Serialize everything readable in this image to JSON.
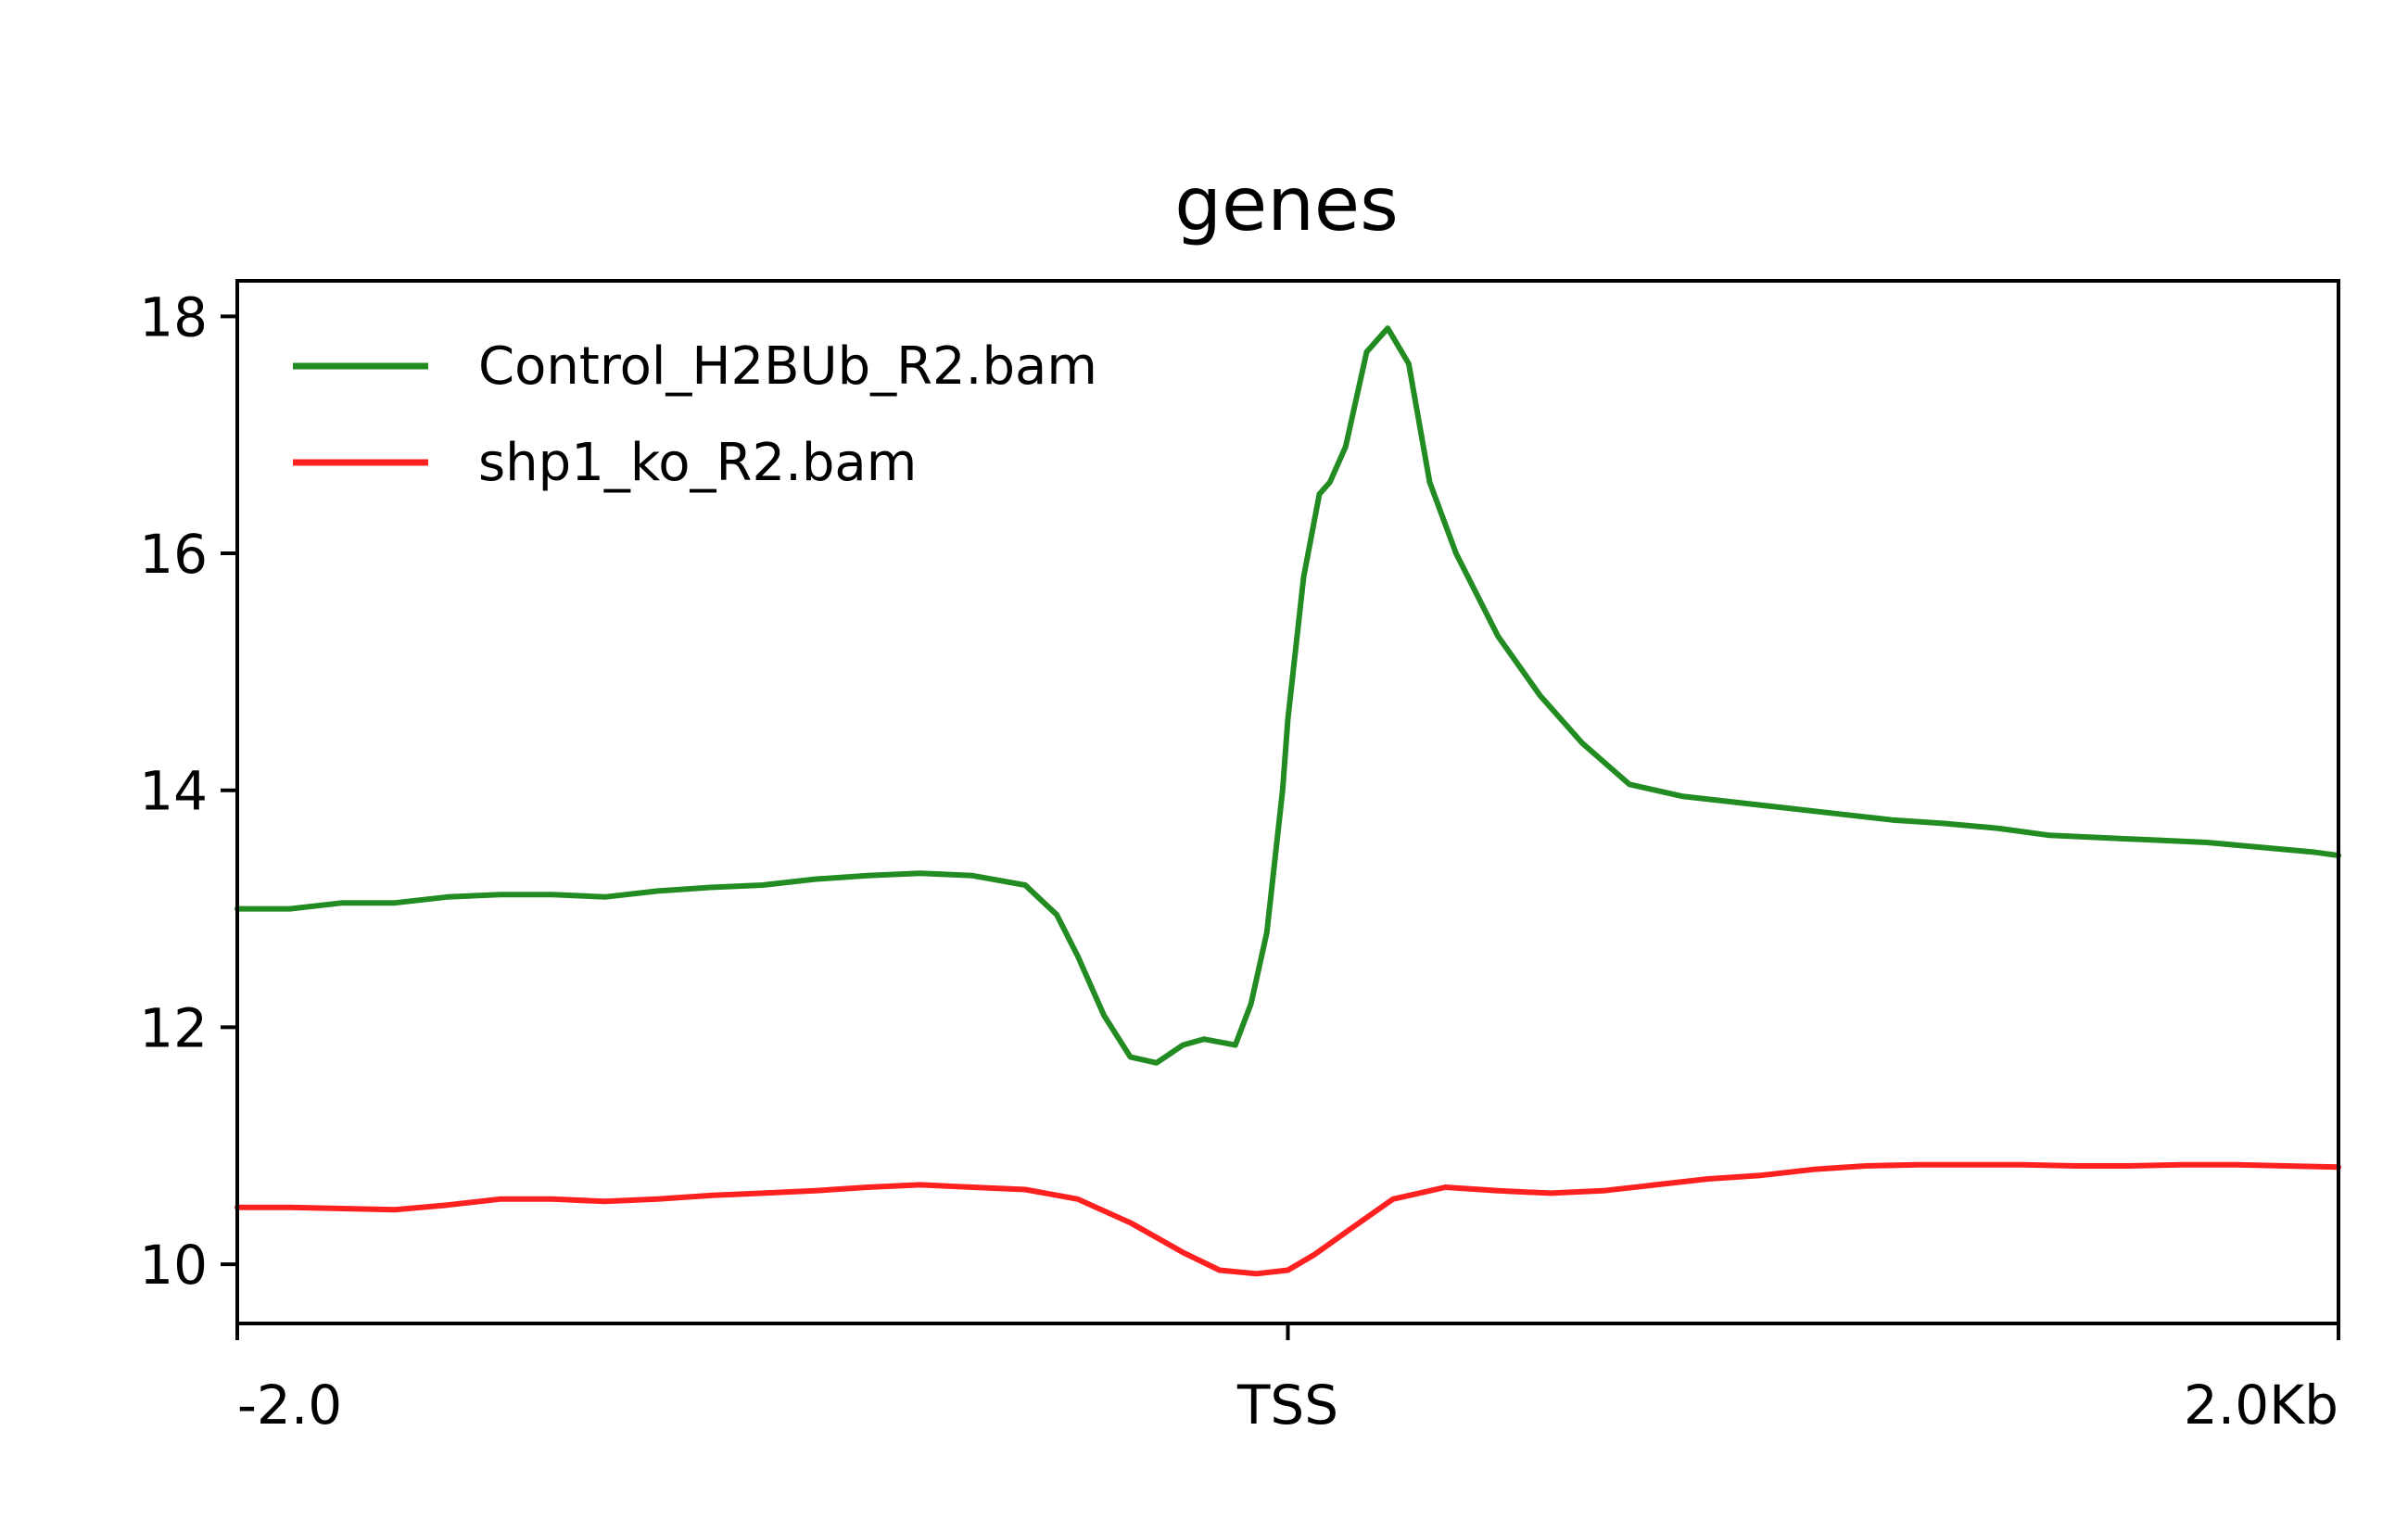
{
  "chart_data": {
    "type": "line",
    "title": "genes",
    "xlabel": "",
    "ylabel": "",
    "xlim": [
      -2000,
      2000
    ],
    "ylim": [
      9.5,
      18.3
    ],
    "grid": false,
    "legend_position": "top-left",
    "x_ticks": [
      {
        "value": -2000,
        "label": "-2.0"
      },
      {
        "value": 0,
        "label": "TSS"
      },
      {
        "value": 2000,
        "label": "2.0Kb"
      }
    ],
    "y_ticks": [
      {
        "value": 10,
        "label": "10"
      },
      {
        "value": 12,
        "label": "12"
      },
      {
        "value": 14,
        "label": "14"
      },
      {
        "value": 16,
        "label": "16"
      },
      {
        "value": 18,
        "label": "18"
      }
    ],
    "series": [
      {
        "name": "Control_H2BUb_R2.bam",
        "color": "#228b22",
        "points": [
          [
            -2000,
            13.0
          ],
          [
            -1900,
            13.0
          ],
          [
            -1800,
            13.05
          ],
          [
            -1700,
            13.05
          ],
          [
            -1600,
            13.1
          ],
          [
            -1500,
            13.12
          ],
          [
            -1400,
            13.12
          ],
          [
            -1300,
            13.1
          ],
          [
            -1200,
            13.15
          ],
          [
            -1100,
            13.18
          ],
          [
            -1000,
            13.2
          ],
          [
            -900,
            13.25
          ],
          [
            -800,
            13.28
          ],
          [
            -700,
            13.3
          ],
          [
            -600,
            13.28
          ],
          [
            -500,
            13.2
          ],
          [
            -440,
            12.95
          ],
          [
            -400,
            12.6
          ],
          [
            -350,
            12.1
          ],
          [
            -300,
            11.75
          ],
          [
            -250,
            11.7
          ],
          [
            -200,
            11.85
          ],
          [
            -160,
            11.9
          ],
          [
            -100,
            11.85
          ],
          [
            -70,
            12.2
          ],
          [
            -40,
            12.8
          ],
          [
            -10,
            14.0
          ],
          [
            0,
            14.6
          ],
          [
            30,
            15.8
          ],
          [
            60,
            16.5
          ],
          [
            80,
            16.6
          ],
          [
            110,
            16.9
          ],
          [
            150,
            17.7
          ],
          [
            190,
            17.9
          ],
          [
            230,
            17.6
          ],
          [
            270,
            16.6
          ],
          [
            320,
            16.0
          ],
          [
            400,
            15.3
          ],
          [
            480,
            14.8
          ],
          [
            560,
            14.4
          ],
          [
            650,
            14.05
          ],
          [
            750,
            13.95
          ],
          [
            850,
            13.9
          ],
          [
            950,
            13.85
          ],
          [
            1050,
            13.8
          ],
          [
            1150,
            13.75
          ],
          [
            1250,
            13.72
          ],
          [
            1350,
            13.68
          ],
          [
            1450,
            13.62
          ],
          [
            1550,
            13.6
          ],
          [
            1650,
            13.58
          ],
          [
            1750,
            13.56
          ],
          [
            1850,
            13.52
          ],
          [
            1950,
            13.48
          ],
          [
            2000,
            13.45
          ]
        ]
      },
      {
        "name": "shp1_ko_R2.bam",
        "color": "#ff2020",
        "points": [
          [
            -2000,
            10.48
          ],
          [
            -1900,
            10.48
          ],
          [
            -1800,
            10.47
          ],
          [
            -1700,
            10.46
          ],
          [
            -1600,
            10.5
          ],
          [
            -1500,
            10.55
          ],
          [
            -1400,
            10.55
          ],
          [
            -1300,
            10.53
          ],
          [
            -1200,
            10.55
          ],
          [
            -1100,
            10.58
          ],
          [
            -1000,
            10.6
          ],
          [
            -900,
            10.62
          ],
          [
            -800,
            10.65
          ],
          [
            -700,
            10.67
          ],
          [
            -600,
            10.65
          ],
          [
            -500,
            10.63
          ],
          [
            -400,
            10.55
          ],
          [
            -300,
            10.35
          ],
          [
            -200,
            10.1
          ],
          [
            -130,
            9.95
          ],
          [
            -60,
            9.92
          ],
          [
            0,
            9.95
          ],
          [
            50,
            10.08
          ],
          [
            120,
            10.3
          ],
          [
            200,
            10.55
          ],
          [
            300,
            10.65
          ],
          [
            400,
            10.62
          ],
          [
            500,
            10.6
          ],
          [
            600,
            10.62
          ],
          [
            700,
            10.67
          ],
          [
            800,
            10.72
          ],
          [
            900,
            10.75
          ],
          [
            1000,
            10.8
          ],
          [
            1100,
            10.83
          ],
          [
            1200,
            10.84
          ],
          [
            1300,
            10.84
          ],
          [
            1400,
            10.84
          ],
          [
            1500,
            10.83
          ],
          [
            1600,
            10.83
          ],
          [
            1700,
            10.84
          ],
          [
            1800,
            10.84
          ],
          [
            1900,
            10.83
          ],
          [
            2000,
            10.82
          ]
        ]
      }
    ]
  }
}
